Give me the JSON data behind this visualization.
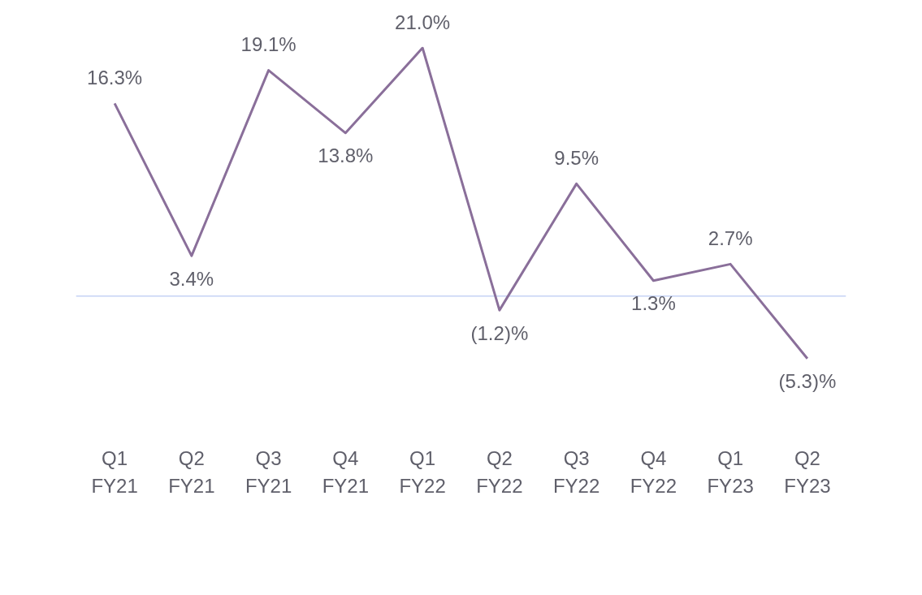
{
  "chart_data": {
    "type": "line",
    "categories": [
      "Q1\nFY21",
      "Q2\nFY21",
      "Q3\nFY21",
      "Q4\nFY21",
      "Q1\nFY22",
      "Q2\nFY22",
      "Q3\nFY22",
      "Q4\nFY22",
      "Q1\nFY23",
      "Q2\nFY23"
    ],
    "series": [
      {
        "color": "#8a6f9a",
        "values": [
          16.3,
          3.4,
          19.1,
          13.8,
          21.0,
          -1.2,
          9.5,
          1.3,
          2.7,
          -5.3
        ],
        "value_labels": [
          "16.3%",
          "3.4%",
          "19.1%",
          "13.8%",
          "21.0%",
          "(1.2)%",
          "9.5%",
          "1.3%",
          "2.7%",
          "(5.3)%"
        ]
      }
    ],
    "tick_labels": "x",
    "grid": false,
    "legend": false,
    "marker": "none",
    "ref_lines": [
      {
        "axis": "y",
        "value": 0,
        "color": "#c5d3f5"
      }
    ]
  }
}
